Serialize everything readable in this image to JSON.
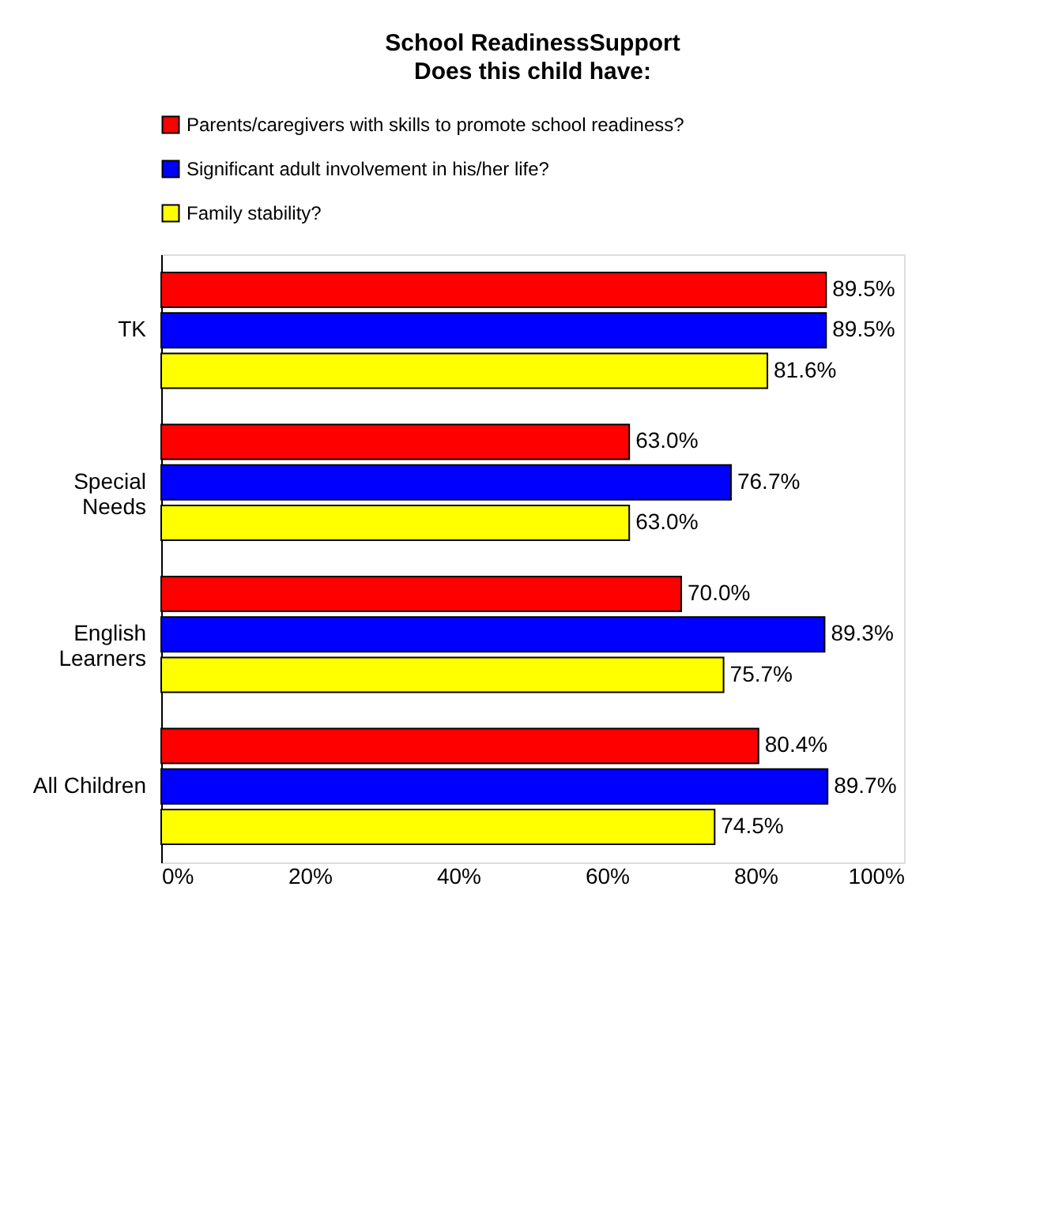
{
  "chart_data": {
    "type": "bar",
    "orientation": "horizontal",
    "title": "School ReadinessSupport",
    "subtitle": "Does this child have:",
    "categories": [
      "TK",
      "Special\nNeeds",
      "English\nLearners",
      "All Children"
    ],
    "series": [
      {
        "name": "Parents/caregivers with skills  to promote school readiness?",
        "color": "#ff0000",
        "values": [
          89.5,
          63.0,
          70.0,
          80.4
        ],
        "value_labels": [
          "89.5%",
          "63.0%",
          "70.0%",
          "80.4%"
        ]
      },
      {
        "name": "Significant adult involvement in his/her life?",
        "color": "#0000ff",
        "values": [
          89.5,
          76.7,
          89.3,
          89.7
        ],
        "value_labels": [
          "89.5%",
          "76.7%",
          "89.3%",
          "89.7%"
        ]
      },
      {
        "name": "Family stability?",
        "color": "#ffff00",
        "values": [
          81.6,
          63.0,
          75.7,
          74.5
        ],
        "value_labels": [
          "81.6%",
          "63.0%",
          "75.7%",
          "74.5%"
        ]
      }
    ],
    "xlim": [
      0,
      100
    ],
    "xticks": [
      {
        "value": 0,
        "label": "0%"
      },
      {
        "value": 20,
        "label": "20%"
      },
      {
        "value": 40,
        "label": "40%"
      },
      {
        "value": 60,
        "label": "60%"
      },
      {
        "value": 80,
        "label": "80%"
      },
      {
        "value": 100,
        "label": "100%"
      }
    ],
    "legend": "top",
    "grid": false
  }
}
